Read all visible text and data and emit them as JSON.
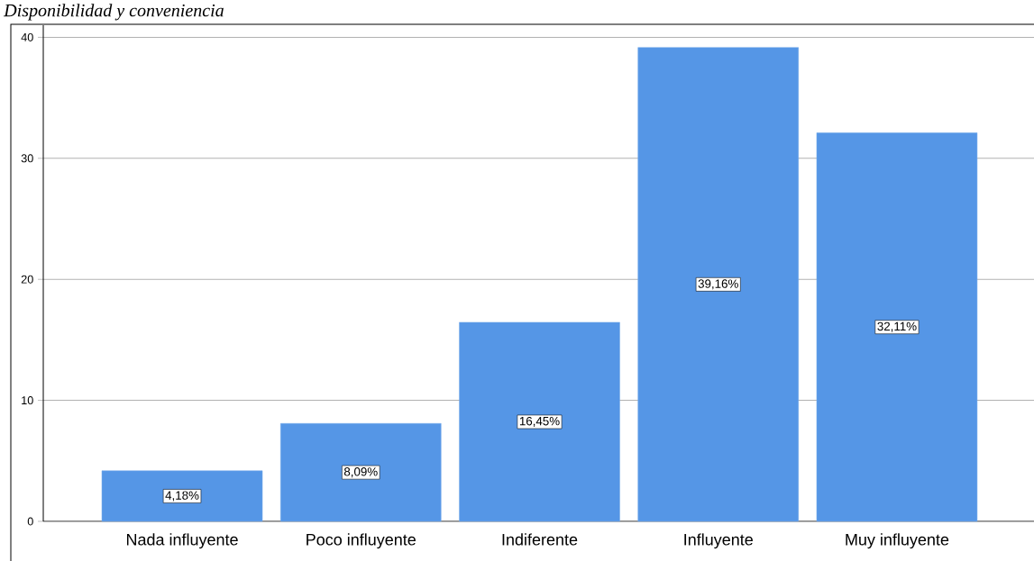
{
  "chart_data": {
    "type": "bar",
    "title": "Disponibilidad y conveniencia",
    "categories": [
      "Nada influyente",
      "Poco influyente",
      "Indiferente",
      "Influyente",
      "Muy influyente"
    ],
    "values": [
      4.18,
      8.09,
      16.45,
      39.16,
      32.11
    ],
    "value_labels": [
      "4,18%",
      "8,09%",
      "16,45%",
      "39,16%",
      "32,11%"
    ],
    "color": "#5596e6",
    "ylim": [
      0,
      41
    ],
    "yticks": [
      0,
      10,
      20,
      30,
      40
    ],
    "grid": "y"
  }
}
